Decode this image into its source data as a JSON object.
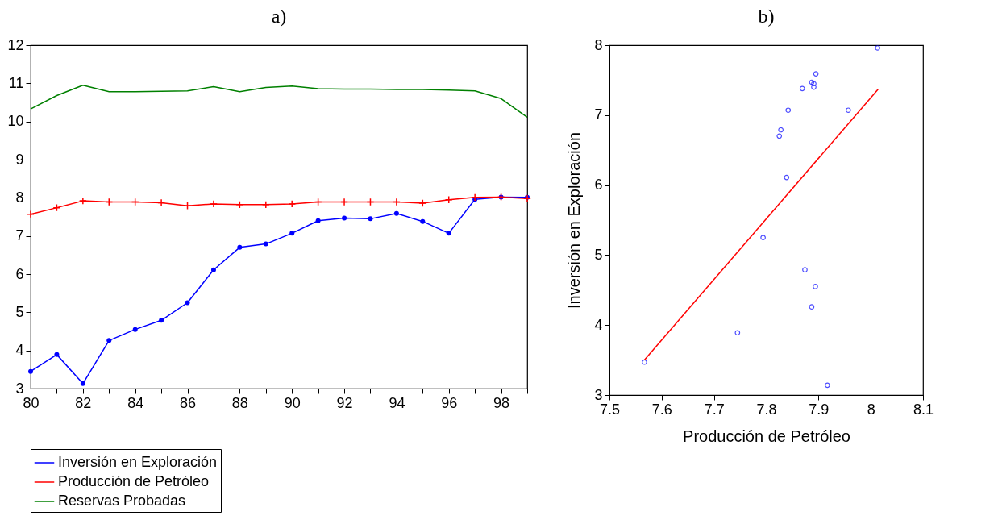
{
  "chart_data": [
    {
      "type": "line",
      "title": "a)",
      "x": [
        80,
        81,
        82,
        83,
        84,
        85,
        86,
        87,
        88,
        89,
        90,
        91,
        92,
        93,
        94,
        95,
        96,
        97,
        98,
        99
      ],
      "xlim": [
        80,
        99
      ],
      "xticks": [
        80,
        {
          "value": 81,
          "label": null
        },
        82,
        {
          "value": 83,
          "label": null
        },
        84,
        {
          "value": 85,
          "label": null
        },
        86,
        {
          "value": 87,
          "label": null
        },
        88,
        {
          "value": 89,
          "label": null
        },
        90,
        {
          "value": 91,
          "label": null
        },
        92,
        {
          "value": 93,
          "label": null
        },
        94,
        {
          "value": 95,
          "label": null
        },
        96,
        {
          "value": 97,
          "label": null
        },
        98,
        {
          "value": 99,
          "label": null
        }
      ],
      "ylim": [
        3,
        12
      ],
      "yticks": [
        3,
        4,
        5,
        6,
        7,
        8,
        9,
        10,
        11,
        12
      ],
      "legend": "bottom",
      "series": [
        {
          "name": "Inversión en Exploración",
          "color": "#0000ff",
          "marker": "circle",
          "values": [
            3.45,
            3.89,
            3.13,
            4.26,
            4.55,
            4.79,
            5.25,
            6.11,
            6.7,
            6.79,
            7.07,
            7.4,
            7.47,
            7.45,
            7.59,
            7.38,
            7.07,
            7.96,
            8.02,
            8.01
          ]
        },
        {
          "name": "Producción de Petróleo",
          "color": "#ff0000",
          "marker": "cross",
          "values": [
            7.57,
            7.74,
            7.92,
            7.89,
            7.89,
            7.87,
            7.79,
            7.84,
            7.82,
            7.82,
            7.84,
            7.89,
            7.89,
            7.89,
            7.89,
            7.86,
            7.95,
            8.01,
            8.02,
            7.98
          ]
        },
        {
          "name": "Reservas Probadas",
          "color": "#008000",
          "marker": "none",
          "values": [
            10.33,
            10.68,
            10.95,
            10.78,
            10.78,
            10.79,
            10.8,
            10.91,
            10.78,
            10.89,
            10.93,
            10.86,
            10.85,
            10.85,
            10.84,
            10.84,
            10.82,
            10.8,
            10.6,
            10.11
          ]
        }
      ]
    },
    {
      "type": "scatter",
      "title": "b)",
      "xlabel": "Producción de Petróleo",
      "ylabel": "Inversión en Exploración",
      "xlim": [
        7.5,
        8.1
      ],
      "xticks": [
        7.5,
        7.6,
        7.7,
        7.8,
        7.9,
        8.0,
        8.1
      ],
      "ylim": [
        3,
        8
      ],
      "yticks": [
        3,
        4,
        5,
        6,
        7,
        8
      ],
      "series": [
        {
          "color": "#0000ff",
          "marker": "circle",
          "x": [
            7.567,
            7.745,
            7.794,
            7.825,
            7.828,
            7.839,
            7.842,
            7.869,
            7.874,
            7.887,
            7.887,
            7.891,
            7.891,
            7.894,
            7.895,
            7.917,
            7.957,
            8.013
          ],
          "values": [
            3.47,
            3.89,
            5.25,
            6.7,
            6.79,
            6.11,
            7.07,
            7.38,
            4.79,
            4.26,
            7.47,
            7.45,
            7.4,
            4.55,
            7.59,
            3.14,
            7.07,
            7.96
          ]
        },
        {
          "type": "line",
          "color": "#ff0000",
          "marker": "none",
          "x": [
            7.567,
            8.014
          ],
          "values": [
            3.5,
            7.37
          ]
        }
      ]
    }
  ]
}
